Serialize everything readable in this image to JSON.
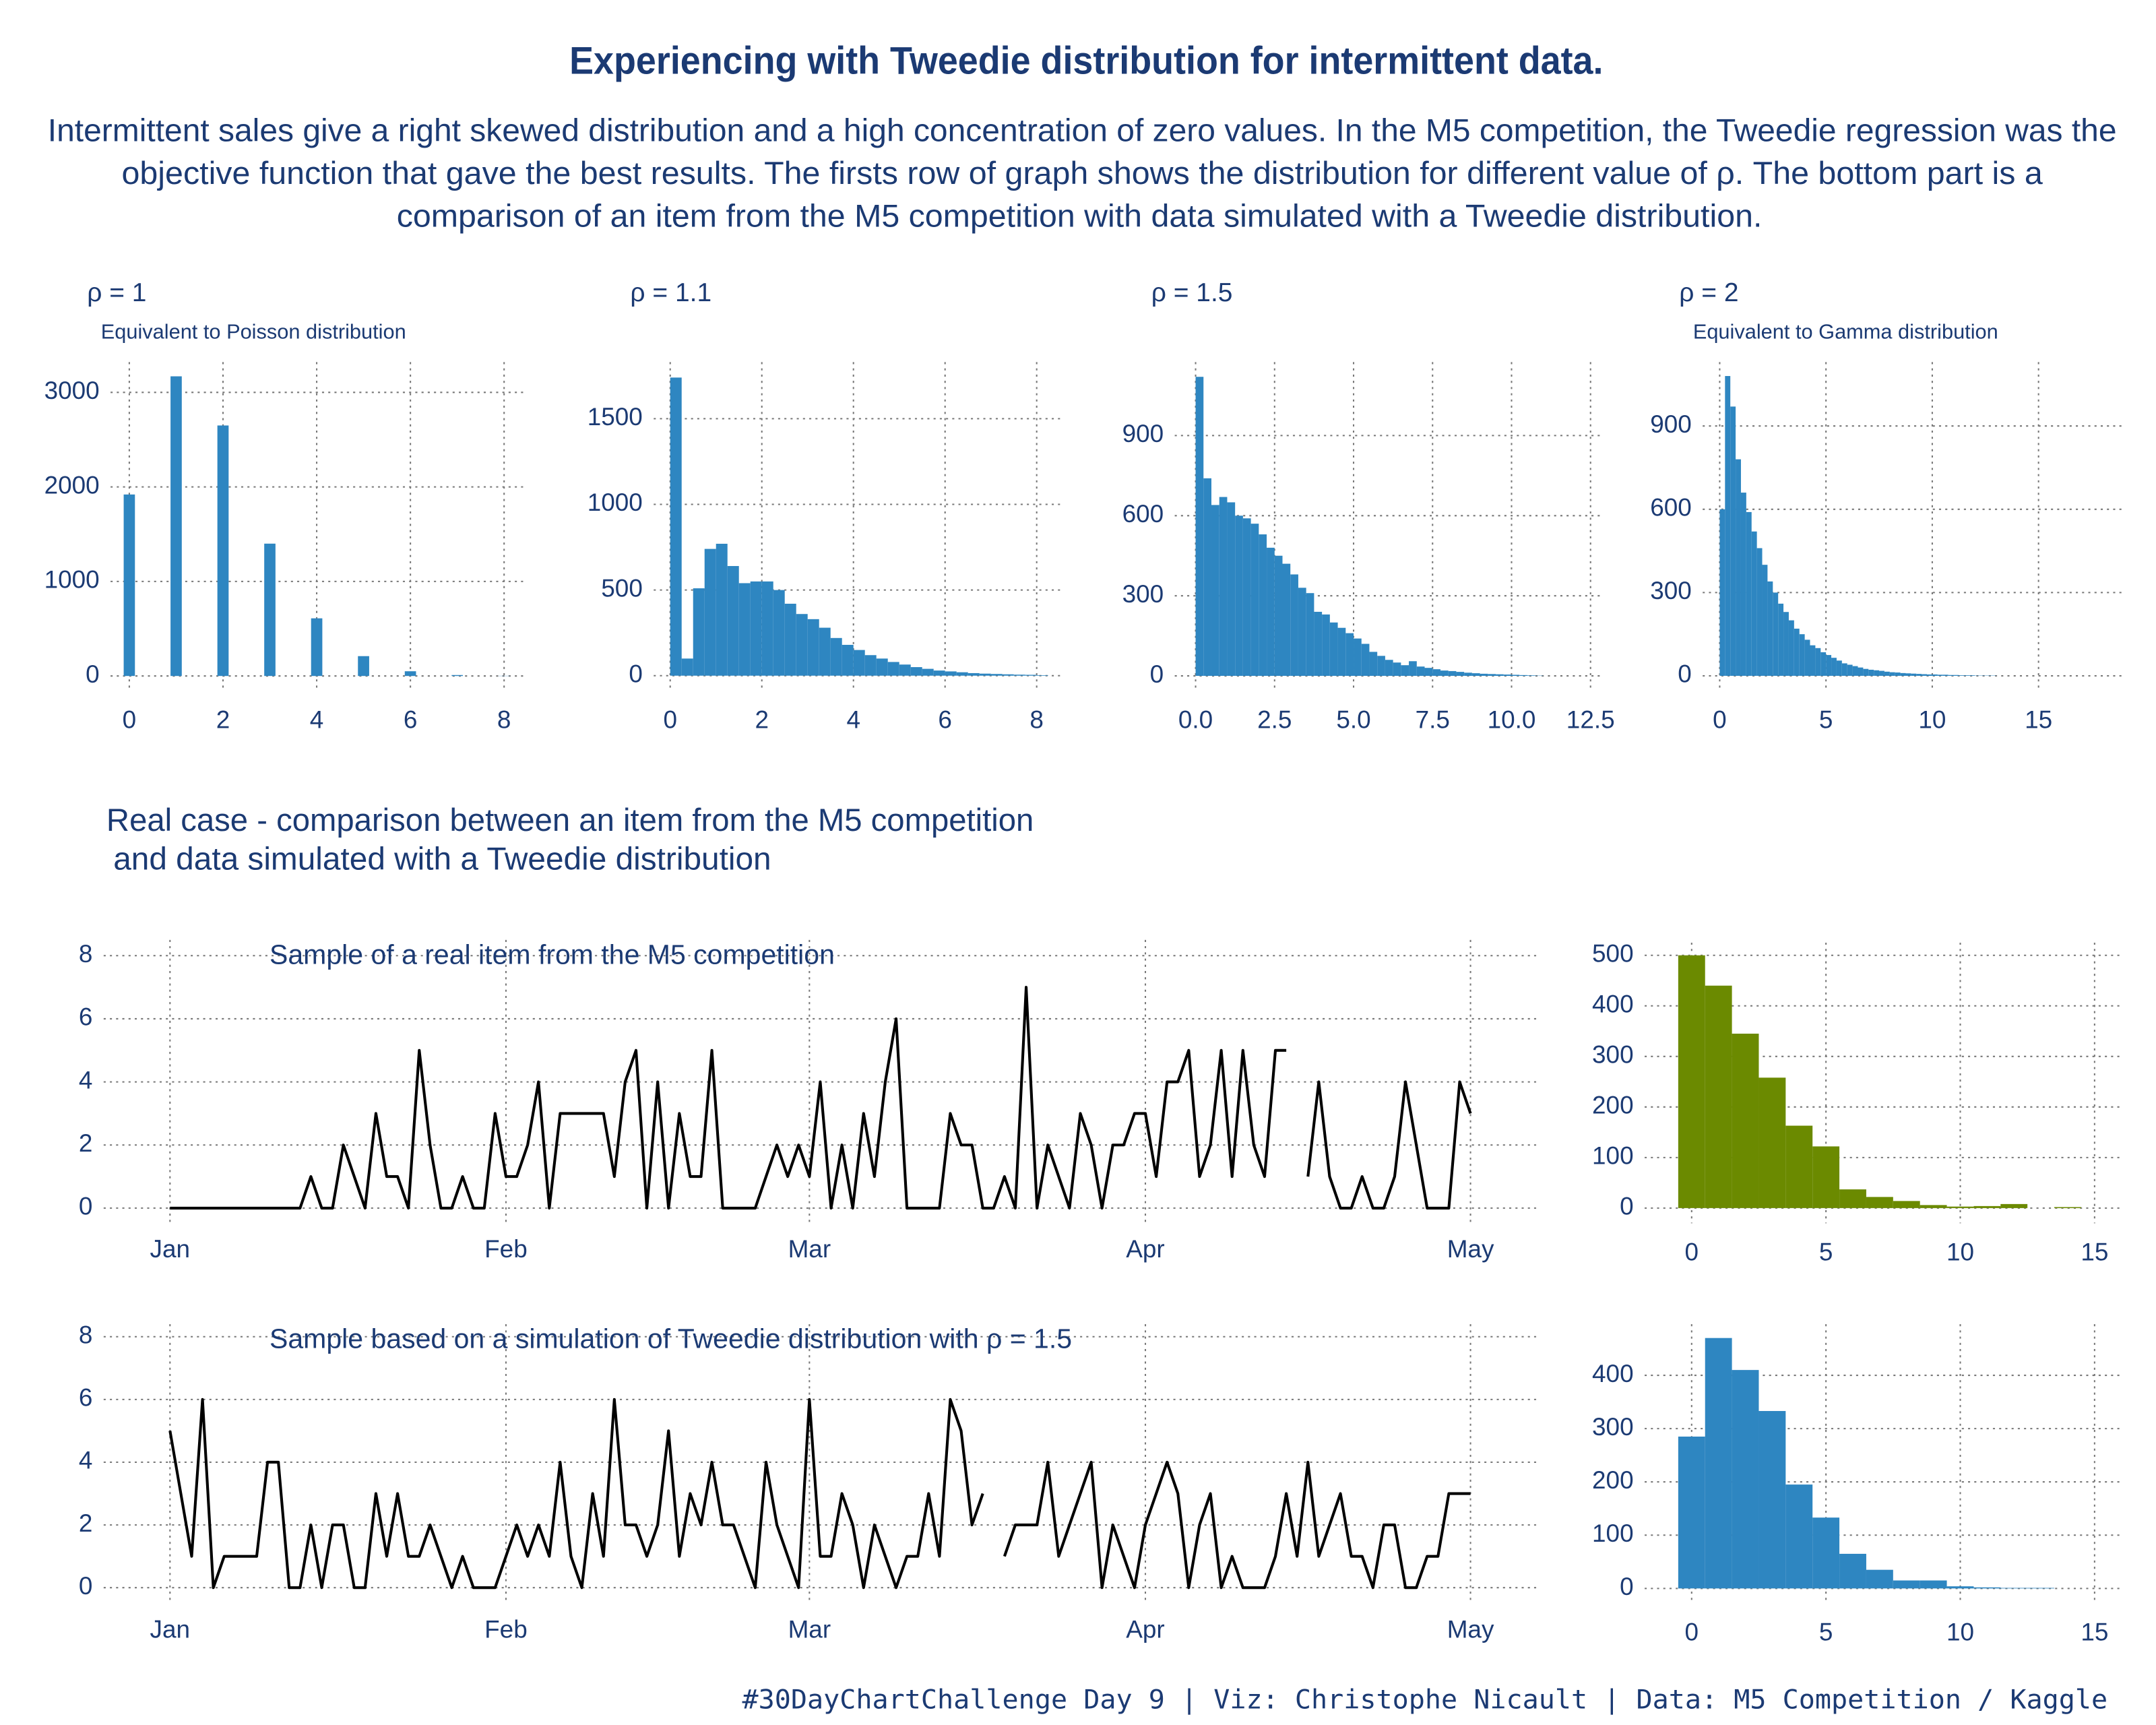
{
  "title": "Experiencing with Tweedie distribution for intermittent data.",
  "subtitle": [
    "Intermittent sales give a right skewed distribution and a high concentration of zero values. In the M5 competition, the Tweedie regression was the",
    "objective function that gave the best results. The firsts row of graph shows the distribution for different value of ρ. The bottom part is a",
    "comparison of an item from the M5 competition with data simulated with a Tweedie distribution."
  ],
  "section_title": [
    "Real case - comparison between an item from the M5 competition",
    "and data simulated with a Tweedie distribution"
  ],
  "caption": "#30DayChartChallenge Day 9 | Viz: Christophe Nicault | Data: M5 Competition / Kaggle",
  "chart_data": [
    {
      "type": "bar",
      "title": "ρ = 1",
      "subtitle": "Equivalent to Poisson distribution",
      "color": "#2e86c1",
      "grid": true,
      "x": [
        0,
        1,
        2,
        3,
        4,
        5,
        6,
        7,
        8
      ],
      "values": [
        1920,
        3170,
        2650,
        1400,
        610,
        210,
        50,
        10,
        2
      ],
      "xlim": [
        -0.4,
        8.45
      ],
      "xticks": [
        0,
        2,
        4,
        6,
        8
      ],
      "ylim": [
        -160,
        3320
      ],
      "yticks": [
        0,
        1000,
        2000,
        3000
      ]
    },
    {
      "type": "histogram",
      "title": "ρ = 1.1",
      "color": "#2e86c1",
      "grid": true,
      "bins": [
        0,
        0.25,
        0.5,
        0.75,
        1,
        1.25,
        1.5,
        1.75,
        2,
        2.25,
        2.5,
        2.75,
        3,
        3.25,
        3.5,
        3.75,
        4,
        4.25,
        4.5,
        4.75,
        5,
        5.25,
        5.5,
        5.75,
        6,
        6.25,
        6.5,
        6.75,
        7,
        7.25,
        7.5,
        7.75,
        8,
        8.25
      ],
      "values": [
        1740,
        100,
        510,
        740,
        770,
        640,
        540,
        550,
        550,
        500,
        420,
        360,
        330,
        280,
        220,
        180,
        150,
        120,
        100,
        80,
        65,
        50,
        40,
        30,
        25,
        20,
        15,
        12,
        10,
        8,
        6,
        5,
        3
      ],
      "xlim": [
        -0.36,
        8.6
      ],
      "xticks": [
        0,
        2,
        4,
        6,
        8
      ],
      "ylim": [
        -90,
        1830
      ],
      "yticks": [
        0,
        500,
        1000,
        1500
      ]
    },
    {
      "type": "histogram",
      "title": "ρ = 1.5",
      "color": "#2e86c1",
      "grid": true,
      "bins": [
        0,
        0.25,
        0.5,
        0.75,
        1,
        1.25,
        1.5,
        1.75,
        2,
        2.25,
        2.5,
        2.75,
        3,
        3.25,
        3.5,
        3.75,
        4,
        4.25,
        4.5,
        4.75,
        5,
        5.25,
        5.5,
        5.75,
        6,
        6.25,
        6.5,
        6.75,
        7,
        7.25,
        7.5,
        7.75,
        8,
        8.25,
        8.5,
        8.75,
        9,
        9.25,
        9.5,
        9.75,
        10,
        10.25,
        10.5,
        10.75,
        11
      ],
      "values": [
        1120,
        740,
        640,
        670,
        650,
        600,
        590,
        570,
        530,
        480,
        450,
        420,
        380,
        330,
        310,
        240,
        230,
        200,
        180,
        160,
        140,
        120,
        90,
        75,
        60,
        50,
        40,
        55,
        35,
        30,
        25,
        20,
        18,
        15,
        12,
        10,
        8,
        7,
        6,
        5,
        4,
        3,
        2,
        1
      ],
      "xlim": [
        -0.66,
        12.9
      ],
      "xticks": [
        {
          "value": 0,
          "label": "0.0"
        },
        2.5,
        {
          "value": 5,
          "label": "5.0"
        },
        7.5,
        {
          "value": 10,
          "label": "10.0"
        },
        12.5
      ],
      "ylim": [
        -57,
        1175
      ],
      "yticks": [
        0,
        300,
        600,
        900
      ]
    },
    {
      "type": "histogram",
      "title": "ρ = 2",
      "subtitle": "Equivalent to Gamma distribution",
      "color": "#2e86c1",
      "grid": true,
      "bins": [
        0,
        0.25,
        0.5,
        0.75,
        1,
        1.25,
        1.5,
        1.75,
        2,
        2.25,
        2.5,
        2.75,
        3,
        3.25,
        3.5,
        3.75,
        4,
        4.25,
        4.5,
        4.75,
        5,
        5.25,
        5.5,
        5.75,
        6,
        6.25,
        6.5,
        6.75,
        7,
        7.25,
        7.5,
        7.75,
        8,
        8.25,
        8.5,
        8.75,
        9,
        9.25,
        9.5,
        9.75,
        10,
        10.25,
        10.5,
        10.75,
        11,
        11.25,
        11.5,
        11.75,
        12,
        12.25,
        12.5,
        12.75,
        13
      ],
      "values": [
        600,
        1080,
        970,
        780,
        660,
        590,
        520,
        460,
        400,
        340,
        300,
        260,
        230,
        200,
        170,
        150,
        130,
        110,
        100,
        85,
        75,
        65,
        55,
        45,
        40,
        35,
        30,
        25,
        22,
        20,
        18,
        15,
        13,
        12,
        10,
        9,
        8,
        7,
        6,
        5,
        5,
        4,
        4,
        3,
        3,
        2,
        2,
        2,
        1,
        1,
        1,
        1
      ],
      "xlim": [
        -0.8,
        18.9
      ],
      "xticks": [
        0,
        5,
        10,
        15
      ],
      "ylim": [
        -55,
        1130
      ],
      "yticks": [
        0,
        300,
        600,
        900
      ]
    },
    {
      "type": "line",
      "title": "Sample of a real item from the M5 competition",
      "color": "#000000",
      "grid": true,
      "categories": [
        "Jan",
        null,
        null,
        null,
        null,
        null,
        null,
        null,
        null,
        null,
        null,
        null,
        null,
        null,
        null,
        null,
        null,
        null,
        null,
        null,
        null,
        null,
        null,
        null,
        null,
        null,
        null,
        null,
        null,
        null,
        null,
        "Feb",
        null,
        null,
        null,
        null,
        null,
        null,
        null,
        null,
        null,
        null,
        null,
        null,
        null,
        null,
        null,
        null,
        null,
        null,
        null,
        null,
        null,
        null,
        null,
        null,
        null,
        null,
        null,
        "Mar",
        null,
        null,
        null,
        null,
        null,
        null,
        null,
        null,
        null,
        null,
        null,
        null,
        null,
        null,
        null,
        null,
        null,
        null,
        null,
        null,
        null,
        null,
        null,
        null,
        null,
        null,
        null,
        null,
        null,
        null,
        "Apr",
        null,
        null,
        null,
        null,
        null,
        null,
        null,
        null,
        null,
        null,
        null,
        null,
        null,
        null,
        null,
        null,
        null,
        null,
        null,
        null,
        null,
        null,
        null,
        null,
        null,
        null,
        null,
        null,
        null,
        "May"
      ],
      "values": [
        0,
        0,
        0,
        0,
        0,
        0,
        0,
        0,
        0,
        0,
        0,
        0,
        0,
        1,
        0,
        0,
        2,
        1,
        0,
        3,
        1,
        1,
        0,
        5,
        2,
        0,
        0,
        1,
        0,
        0,
        3,
        1,
        1,
        2,
        4,
        0,
        3,
        3,
        3,
        3,
        3,
        1,
        4,
        5,
        0,
        4,
        0,
        3,
        1,
        1,
        5,
        0,
        0,
        0,
        0,
        1,
        2,
        1,
        2,
        1,
        4,
        0,
        2,
        0,
        3,
        1,
        4,
        6,
        0,
        0,
        0,
        0,
        3,
        2,
        2,
        0,
        0,
        1,
        0,
        7,
        0,
        2,
        1,
        0,
        3,
        2,
        0,
        2,
        2,
        3,
        3,
        1,
        4,
        4,
        5,
        1,
        2,
        5,
        1,
        5,
        2,
        1,
        5,
        5,
        null,
        1,
        4,
        1,
        0,
        0,
        1,
        0,
        0,
        1,
        4,
        2,
        0,
        0,
        0,
        4,
        3
      ],
      "ylim": [
        -0.48,
        8.5
      ],
      "yticks": [
        0,
        2,
        4,
        6,
        8
      ]
    },
    {
      "type": "line",
      "title": "Sample based on a simulation of Tweedie distribution with ρ = 1.5",
      "color": "#000000",
      "grid": true,
      "categories": [
        "Jan",
        null,
        null,
        null,
        null,
        null,
        null,
        null,
        null,
        null,
        null,
        null,
        null,
        null,
        null,
        null,
        null,
        null,
        null,
        null,
        null,
        null,
        null,
        null,
        null,
        null,
        null,
        null,
        null,
        null,
        null,
        "Feb",
        null,
        null,
        null,
        null,
        null,
        null,
        null,
        null,
        null,
        null,
        null,
        null,
        null,
        null,
        null,
        null,
        null,
        null,
        null,
        null,
        null,
        null,
        null,
        null,
        null,
        null,
        null,
        "Mar",
        null,
        null,
        null,
        null,
        null,
        null,
        null,
        null,
        null,
        null,
        null,
        null,
        null,
        null,
        null,
        null,
        null,
        null,
        null,
        null,
        null,
        null,
        null,
        null,
        null,
        null,
        null,
        null,
        null,
        null,
        "Apr",
        null,
        null,
        null,
        null,
        null,
        null,
        null,
        null,
        null,
        null,
        null,
        null,
        null,
        null,
        null,
        null,
        null,
        null,
        null,
        null,
        null,
        null,
        null,
        null,
        null,
        null,
        null,
        null,
        null,
        "May"
      ],
      "values": [
        5,
        3,
        1,
        6,
        0,
        1,
        1,
        1,
        1,
        4,
        4,
        0,
        0,
        2,
        0,
        2,
        2,
        0,
        0,
        3,
        1,
        3,
        1,
        1,
        2,
        1,
        0,
        1,
        0,
        0,
        0,
        1,
        2,
        1,
        2,
        1,
        4,
        1,
        0,
        3,
        1,
        6,
        2,
        2,
        1,
        2,
        5,
        1,
        3,
        2,
        4,
        2,
        2,
        1,
        0,
        4,
        2,
        1,
        0,
        6,
        1,
        1,
        3,
        2,
        0,
        2,
        1,
        0,
        1,
        1,
        3,
        1,
        6,
        5,
        2,
        3,
        null,
        1,
        2,
        2,
        2,
        4,
        1,
        2,
        3,
        4,
        0,
        2,
        1,
        0,
        2,
        3,
        4,
        3,
        0,
        2,
        3,
        0,
        1,
        0,
        0,
        0,
        1,
        3,
        1,
        4,
        1,
        2,
        3,
        1,
        1,
        0,
        2,
        2,
        0,
        0,
        1,
        1,
        3,
        3,
        3
      ],
      "ylim": [
        -0.5,
        8.4
      ],
      "yticks": [
        0,
        2,
        4,
        6,
        8
      ]
    },
    {
      "type": "histogram",
      "color": "#6b8a00",
      "grid": true,
      "bins": [
        -0.5,
        0.5,
        1.5,
        2.5,
        3.5,
        4.5,
        5.5,
        6.5,
        7.5,
        8.5,
        9.5,
        10.5,
        11.5,
        12.5,
        13.5,
        14.5
      ],
      "values": [
        500,
        440,
        345,
        258,
        163,
        122,
        37,
        22,
        14,
        6,
        3,
        4,
        8,
        0,
        2
      ],
      "xlim": [
        -1.75,
        16
      ],
      "xticks": [
        0,
        5,
        10,
        15
      ],
      "ylim": [
        -30,
        525
      ],
      "yticks": [
        0,
        100,
        200,
        300,
        400,
        500
      ]
    },
    {
      "type": "histogram",
      "color": "#2e86c1",
      "grid": true,
      "bins": [
        -0.5,
        0.5,
        1.5,
        2.5,
        3.5,
        4.5,
        5.5,
        6.5,
        7.5,
        8.5,
        9.5,
        10.5,
        11.5,
        12.5,
        13.5,
        14.5
      ],
      "values": [
        285,
        470,
        410,
        333,
        195,
        133,
        65,
        35,
        15,
        15,
        4,
        2,
        1,
        1,
        0
      ],
      "xlim": [
        -1.75,
        16
      ],
      "xticks": [
        0,
        5,
        10,
        15
      ],
      "ylim": [
        -28,
        496
      ],
      "yticks": [
        0,
        100,
        200,
        300,
        400
      ]
    }
  ]
}
